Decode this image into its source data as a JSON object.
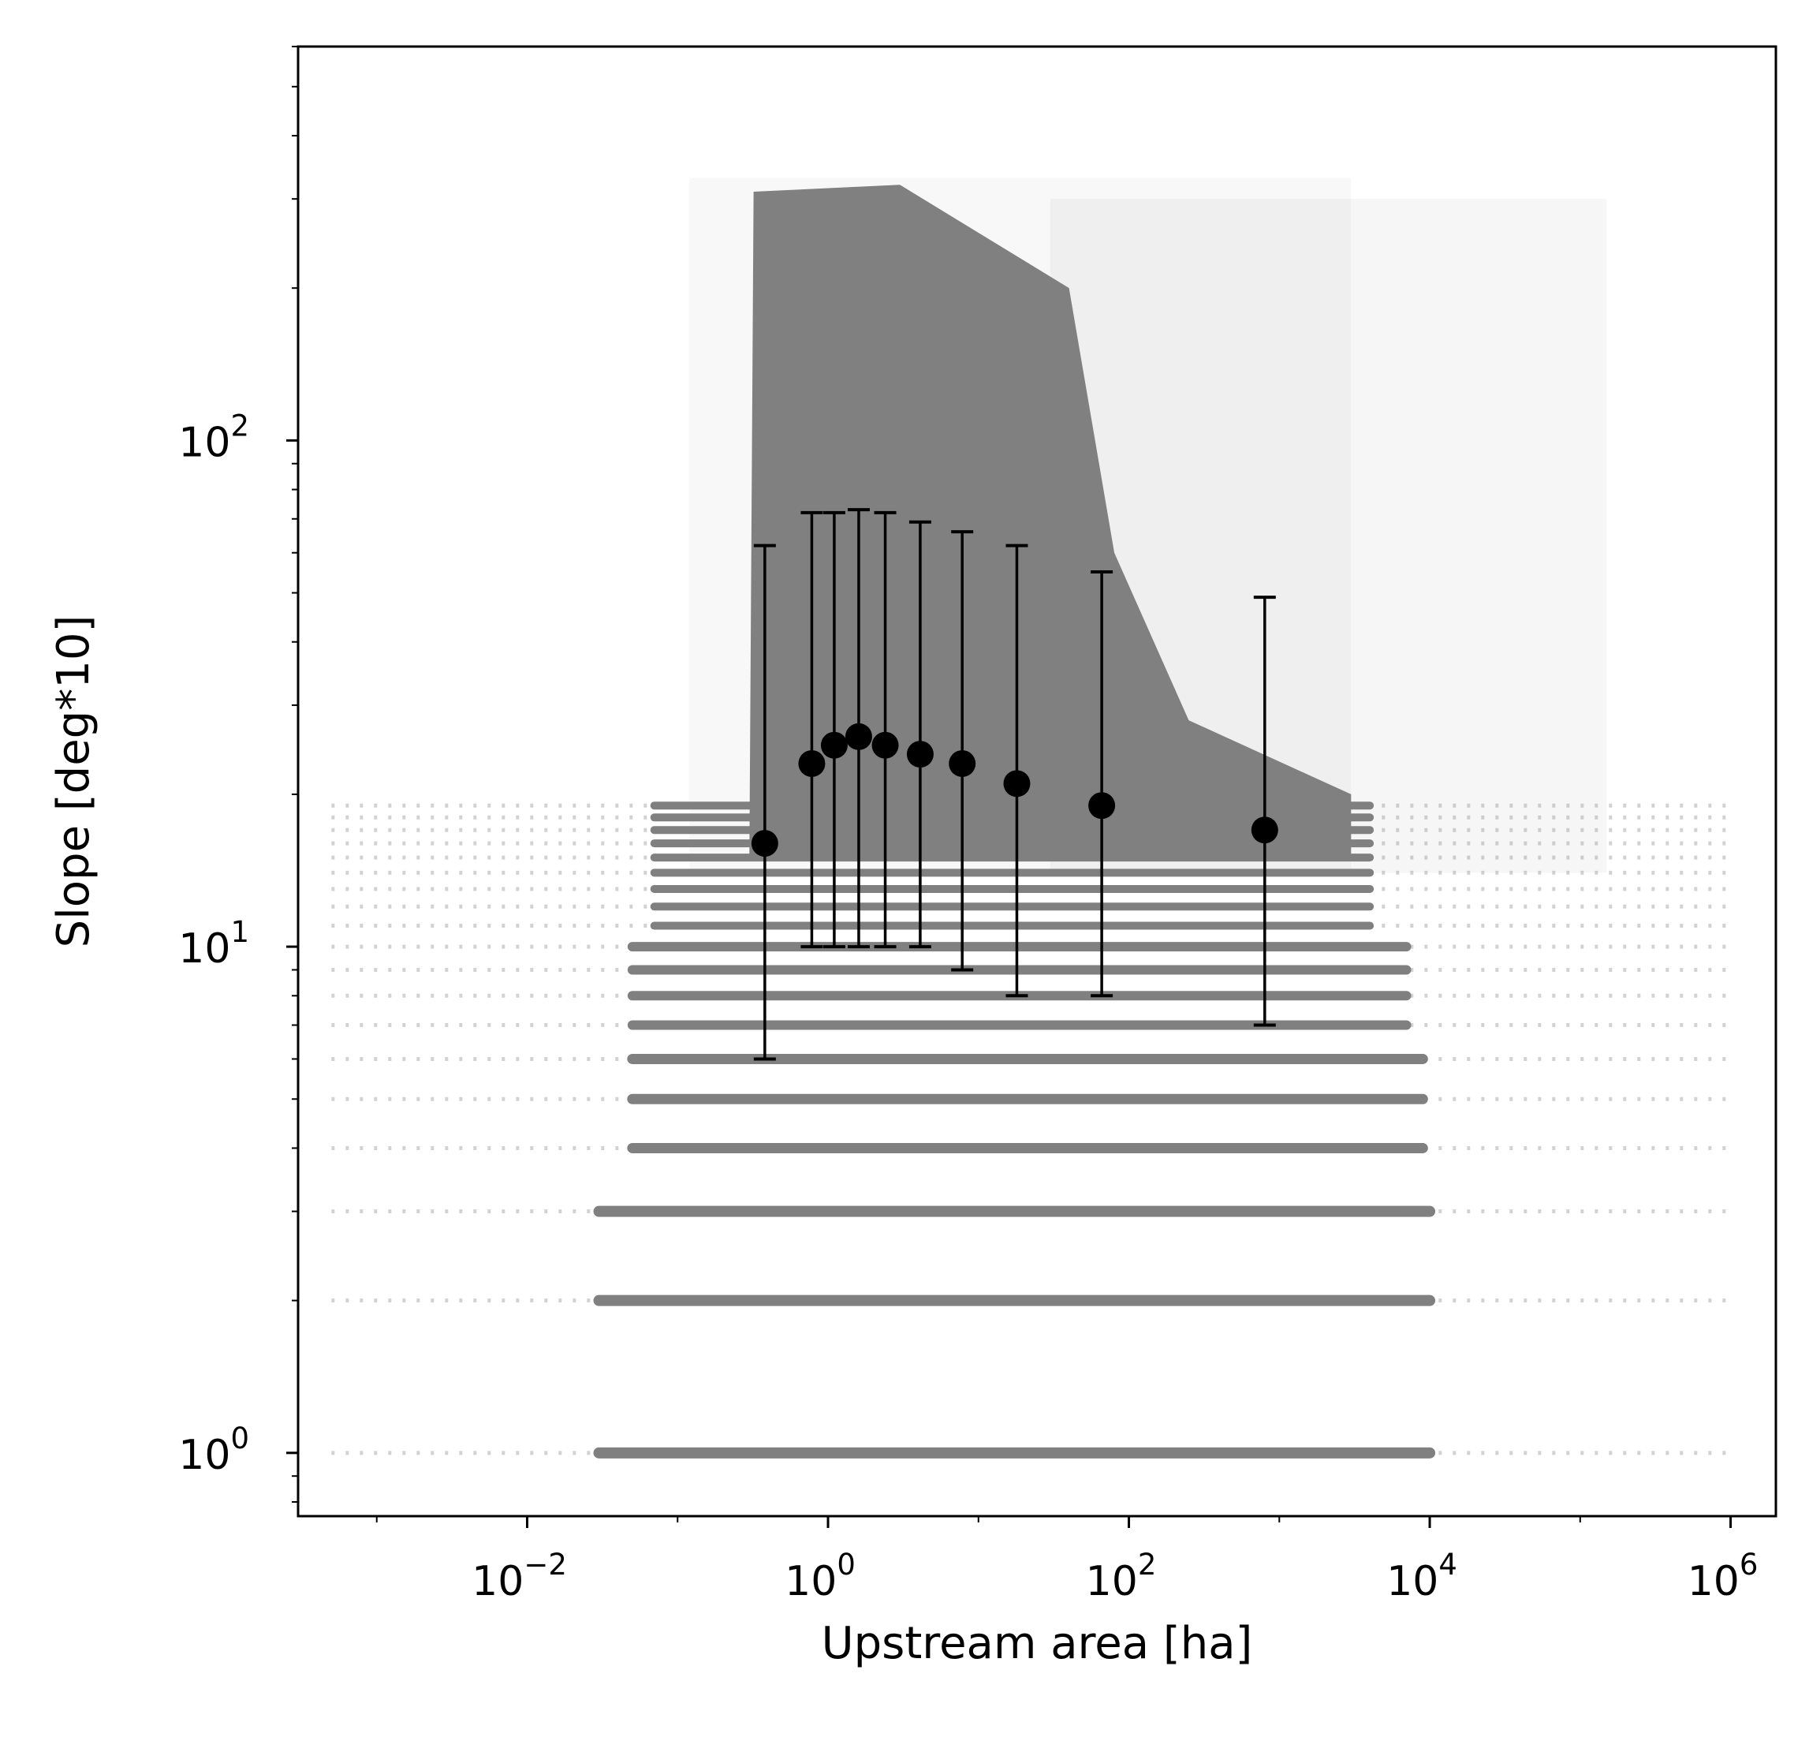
{
  "chart_data": {
    "type": "scatter",
    "xlabel": "Upstream area [ha]",
    "ylabel": "Slope [deg*10]",
    "x_scale": "log",
    "y_scale": "log",
    "xlim": [
      0.0003,
      2000000
    ],
    "ylim": [
      0.75,
      600
    ],
    "x_ticks": [
      {
        "value": 0.01,
        "base": "10",
        "exp": "−2"
      },
      {
        "value": 1,
        "base": "10",
        "exp": "0"
      },
      {
        "value": 100,
        "base": "10",
        "exp": "2"
      },
      {
        "value": 10000,
        "base": "10",
        "exp": "4"
      },
      {
        "value": 1000000,
        "base": "10",
        "exp": "6"
      }
    ],
    "y_ticks": [
      {
        "value": 1,
        "base": "10",
        "exp": "0"
      },
      {
        "value": 10,
        "base": "10",
        "exp": "1"
      },
      {
        "value": 100,
        "base": "10",
        "exp": "2"
      }
    ],
    "grid": false,
    "background_series": {
      "color": "#808080",
      "discrete_slope_levels": [
        1,
        2,
        3,
        4,
        5,
        6,
        7,
        8,
        9,
        10,
        11,
        12,
        13,
        14,
        15,
        16,
        17,
        18,
        19
      ],
      "dense_region": {
        "x_range": [
          0.3,
          40
        ],
        "y_range": [
          15,
          300
        ]
      },
      "sparse_region": {
        "x_range": [
          0.0005,
          1000000
        ],
        "y_range": [
          1,
          450
        ]
      }
    },
    "series": [
      {
        "type": "errorbar",
        "color": "#000000",
        "points": [
          {
            "x": 0.38,
            "y": 16,
            "ylo": 6,
            "yhi": 62
          },
          {
            "x": 0.78,
            "y": 23,
            "ylo": 10,
            "yhi": 72
          },
          {
            "x": 1.1,
            "y": 25,
            "ylo": 10,
            "yhi": 72
          },
          {
            "x": 1.6,
            "y": 26,
            "ylo": 10,
            "yhi": 73
          },
          {
            "x": 2.4,
            "y": 25,
            "ylo": 10,
            "yhi": 72
          },
          {
            "x": 4.1,
            "y": 24,
            "ylo": 10,
            "yhi": 69
          },
          {
            "x": 7.8,
            "y": 23,
            "ylo": 9,
            "yhi": 66
          },
          {
            "x": 18,
            "y": 21,
            "ylo": 8,
            "yhi": 62
          },
          {
            "x": 66,
            "y": 19,
            "ylo": 8,
            "yhi": 55
          },
          {
            "x": 800,
            "y": 17,
            "ylo": 7,
            "yhi": 49
          }
        ]
      }
    ]
  }
}
